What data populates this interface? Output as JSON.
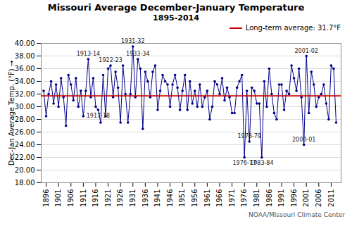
{
  "chart_data": {
    "type": "line",
    "title": "Missouri Average December-January Temperature",
    "subtitle": "1895-2014",
    "ylabel": "Dec-Jan Average Temp. (°F)",
    "caption": "NOAA/Missouri Climate Center",
    "color": "#00008B",
    "marker": "circle",
    "x": [
      1895,
      1896,
      1897,
      1898,
      1899,
      1900,
      1901,
      1902,
      1903,
      1904,
      1905,
      1906,
      1907,
      1908,
      1909,
      1910,
      1911,
      1912,
      1913,
      1914,
      1915,
      1916,
      1917,
      1918,
      1919,
      1920,
      1921,
      1922,
      1923,
      1924,
      1925,
      1926,
      1927,
      1928,
      1929,
      1930,
      1931,
      1932,
      1933,
      1934,
      1935,
      1936,
      1937,
      1938,
      1939,
      1940,
      1941,
      1942,
      1943,
      1944,
      1945,
      1946,
      1947,
      1948,
      1949,
      1950,
      1951,
      1952,
      1953,
      1954,
      1955,
      1956,
      1957,
      1958,
      1959,
      1960,
      1961,
      1962,
      1963,
      1964,
      1965,
      1966,
      1967,
      1968,
      1969,
      1970,
      1971,
      1972,
      1973,
      1974,
      1975,
      1976,
      1977,
      1978,
      1979,
      1980,
      1981,
      1982,
      1983,
      1984,
      1985,
      1986,
      1987,
      1988,
      1989,
      1990,
      1991,
      1992,
      1993,
      1994,
      1995,
      1996,
      1997,
      1998,
      1999,
      2000,
      2001,
      2002,
      2003,
      2004,
      2005,
      2006,
      2007,
      2008,
      2009,
      2010,
      2011,
      2012,
      2013
    ],
    "values": [
      32.5,
      28.5,
      32.0,
      34.0,
      30.5,
      33.5,
      30.0,
      34.5,
      31.5,
      27.0,
      35.0,
      33.5,
      31.0,
      34.5,
      30.0,
      32.5,
      28.5,
      32.5,
      37.5,
      31.5,
      34.5,
      30.0,
      29.5,
      27.5,
      35.0,
      28.5,
      36.0,
      36.5,
      31.5,
      35.5,
      33.0,
      27.5,
      36.5,
      32.0,
      27.5,
      32.0,
      39.5,
      31.5,
      37.5,
      36.0,
      26.5,
      35.5,
      34.0,
      31.5,
      35.5,
      36.5,
      29.5,
      32.5,
      35.0,
      34.0,
      33.5,
      30.0,
      33.5,
      35.0,
      33.0,
      29.5,
      32.5,
      35.0,
      29.5,
      34.0,
      30.5,
      32.5,
      30.0,
      33.5,
      30.0,
      31.5,
      32.5,
      28.0,
      30.0,
      34.0,
      33.5,
      32.0,
      34.5,
      31.0,
      33.0,
      31.5,
      29.0,
      29.0,
      33.0,
      34.0,
      35.0,
      22.0,
      32.5,
      24.5,
      33.0,
      32.5,
      30.5,
      30.5,
      22.0,
      34.0,
      30.0,
      36.0,
      32.0,
      29.0,
      28.0,
      33.5,
      33.5,
      29.5,
      32.5,
      32.0,
      36.5,
      34.5,
      32.5,
      36.0,
      31.5,
      24.0,
      38.0,
      29.0,
      35.5,
      33.5,
      30.0,
      31.5,
      32.0,
      33.5,
      30.5,
      28.0,
      36.5,
      36.0,
      27.5
    ],
    "hlines": [
      {
        "value": 31.7,
        "name": "Long-term average: 31.7°F",
        "color": "#CC0000"
      }
    ],
    "annotations": [
      {
        "text": "1913-14",
        "x": 1913,
        "position": "above"
      },
      {
        "text": "1917-18",
        "x": 1917,
        "position": "below"
      },
      {
        "text": "1922-23",
        "x": 1922,
        "position": "above"
      },
      {
        "text": "1931-32",
        "x": 1931,
        "position": "above"
      },
      {
        "text": "1933-34",
        "x": 1933,
        "position": "above"
      },
      {
        "text": "1976-77",
        "x": 1976,
        "position": "below"
      },
      {
        "text": "1978-79",
        "x": 1978,
        "position": "above"
      },
      {
        "text": "1983-84",
        "x": 1983,
        "position": "below"
      },
      {
        "text": "2000-01",
        "x": 2000,
        "position": "above"
      },
      {
        "text": "2001-02",
        "x": 2001,
        "position": "above"
      }
    ],
    "xlim": [
      1894,
      2015
    ],
    "xticks": [
      1896,
      1901,
      1906,
      1911,
      1916,
      1921,
      1926,
      1931,
      1936,
      1941,
      1946,
      1951,
      1956,
      1961,
      1966,
      1971,
      1976,
      1981,
      1986,
      1991,
      1996,
      2001,
      2006,
      2011
    ],
    "ylim": [
      18.0,
      40.0
    ],
    "yticks": [
      {
        "value": 18,
        "label": "18.00"
      },
      {
        "value": 20,
        "label": "20.00"
      },
      {
        "value": 22,
        "label": "22.00"
      },
      {
        "value": 24,
        "label": "24.00"
      },
      {
        "value": 26,
        "label": "26.00"
      },
      {
        "value": 28,
        "label": "28.00"
      },
      {
        "value": 30,
        "label": "30.00"
      },
      {
        "value": 32,
        "label": "32.00"
      },
      {
        "value": 34,
        "label": "34.00"
      },
      {
        "value": 36,
        "label": "36.00"
      },
      {
        "value": 38,
        "label": "38.00"
      },
      {
        "value": 40,
        "label": "40.00"
      }
    ],
    "grid": true,
    "legend": "upper right"
  }
}
